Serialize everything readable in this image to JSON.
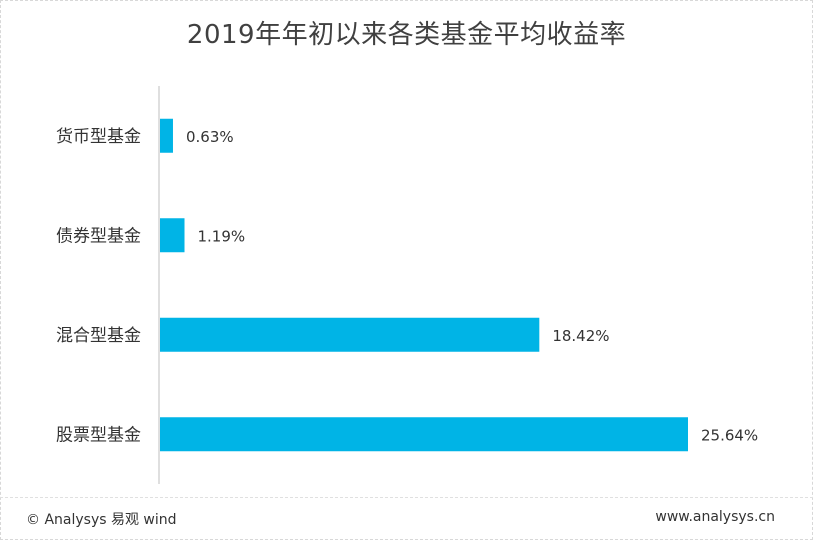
{
  "chart_data": {
    "type": "bar",
    "orientation": "horizontal",
    "title": "2019年年初以来各类基金平均收益率",
    "categories": [
      "货币型基金",
      "债券型基金",
      "混合型基金",
      "股票型基金"
    ],
    "values": [
      0.63,
      1.19,
      18.42,
      25.64
    ],
    "value_labels": [
      "0.63%",
      "1.19%",
      "18.42%",
      "25.64%"
    ],
    "unit": "%",
    "xlim": [
      0,
      27
    ],
    "grid": false,
    "legend": "none",
    "bar_color": "#00b4e6"
  },
  "footer": {
    "source": "© Analysys 易观 wind",
    "site": "www.analysys.cn"
  }
}
